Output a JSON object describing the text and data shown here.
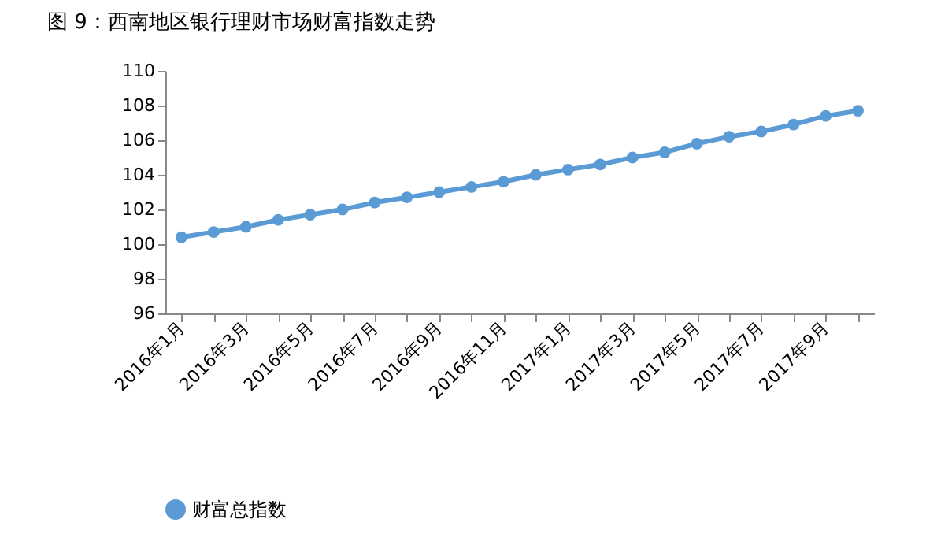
{
  "chart_data": {
    "type": "line",
    "title": "图 9：西南地区银行理财市场财富指数走势",
    "categories": [
      "2016年1月",
      null,
      "2016年3月",
      null,
      "2016年5月",
      null,
      "2016年7月",
      null,
      "2016年9月",
      null,
      "2016年11月",
      null,
      "2017年1月",
      null,
      "2017年3月",
      null,
      "2017年5月",
      null,
      "2017年7月",
      null,
      "2017年9月",
      null
    ],
    "series": [
      {
        "name": "财富总指数",
        "color": "#5b9bd5",
        "values": [
          100.4,
          100.7,
          101.0,
          101.4,
          101.7,
          102.0,
          102.4,
          102.7,
          103.0,
          103.3,
          103.6,
          104.0,
          104.3,
          104.6,
          105.0,
          105.3,
          105.8,
          106.2,
          106.5,
          106.9,
          107.4,
          107.7
        ]
      }
    ],
    "ylim": [
      96,
      110
    ],
    "yticks": [
      96,
      98,
      100,
      102,
      104,
      106,
      108,
      110
    ],
    "grid": false,
    "legend": "bottom",
    "marker": "circle",
    "line_style": "solid"
  }
}
